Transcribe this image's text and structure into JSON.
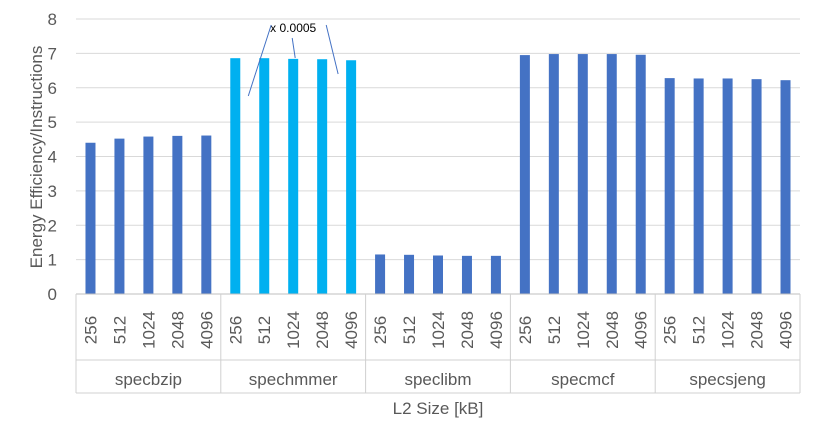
{
  "chart_data": {
    "type": "bar",
    "groups": [
      "specbzip",
      "spechmmer",
      "speclibm",
      "specmcf",
      "specsjeng"
    ],
    "categories": [
      "256",
      "512",
      "1024",
      "2048",
      "4096"
    ],
    "series": [
      {
        "group": "specbzip",
        "values": [
          4.4,
          4.52,
          4.58,
          4.6,
          4.61
        ],
        "color": "#4472C4"
      },
      {
        "group": "spechmmer",
        "values": [
          6.86,
          6.86,
          6.84,
          6.83,
          6.8
        ],
        "color": "#00B0F0"
      },
      {
        "group": "speclibm",
        "values": [
          1.15,
          1.14,
          1.12,
          1.11,
          1.11
        ],
        "color": "#4472C4"
      },
      {
        "group": "specmcf",
        "values": [
          6.95,
          6.98,
          6.98,
          6.98,
          6.96
        ],
        "color": "#4472C4"
      },
      {
        "group": "specsjeng",
        "values": [
          6.28,
          6.27,
          6.27,
          6.25,
          6.22
        ],
        "color": "#4472C4"
      }
    ],
    "xlabel": "L2 Size [kB]",
    "ylabel": "Energy Efficiency/Instructions",
    "ylim": [
      0,
      8
    ],
    "yticks": [
      0,
      1,
      2,
      3,
      4,
      5,
      6,
      7,
      8
    ],
    "grid": true,
    "annotation": {
      "text": "x 0.0005",
      "group": "spechmmer"
    }
  }
}
